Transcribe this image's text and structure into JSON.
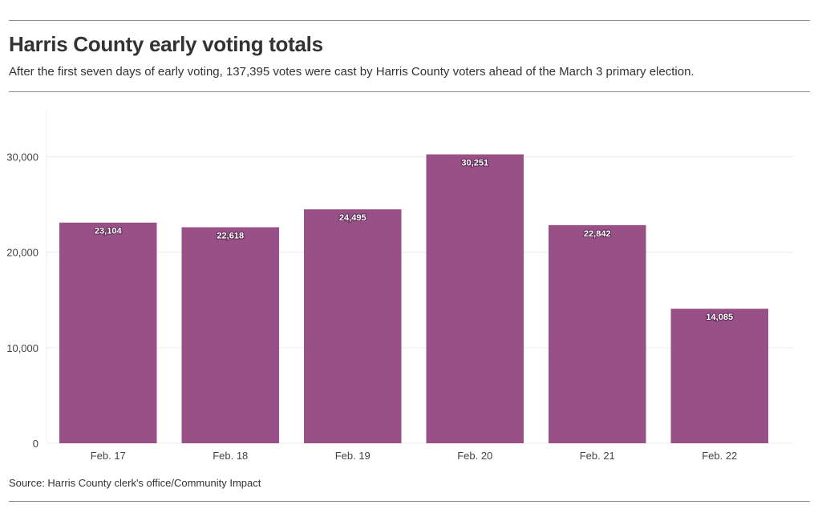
{
  "header": {
    "title": "Harris County early voting totals",
    "subtitle": "After the first seven days of early voting, 137,395 votes were cast by Harris County voters ahead of the March 3 primary election."
  },
  "footer": {
    "source": "Source: Harris County clerk's office/Community Impact"
  },
  "colors": {
    "bar": "#985087",
    "gridline": "#ececec"
  },
  "chart_data": {
    "type": "bar",
    "title": "Harris County early voting totals",
    "xlabel": "",
    "ylabel": "",
    "categories": [
      "Feb. 17",
      "Feb. 18",
      "Feb. 19",
      "Feb. 20",
      "Feb. 21",
      "Feb. 22"
    ],
    "values": [
      23104,
      22618,
      24495,
      30251,
      22842,
      14085
    ],
    "value_labels": [
      "23,104",
      "22,618",
      "24,495",
      "30,251",
      "22,842",
      "14,085"
    ],
    "ylim": [
      0,
      35000
    ],
    "yticks": [
      0,
      10000,
      20000,
      30000
    ],
    "ytick_labels": [
      "0",
      "10,000",
      "20,000",
      "30,000"
    ],
    "grid": true,
    "legend": "none"
  }
}
